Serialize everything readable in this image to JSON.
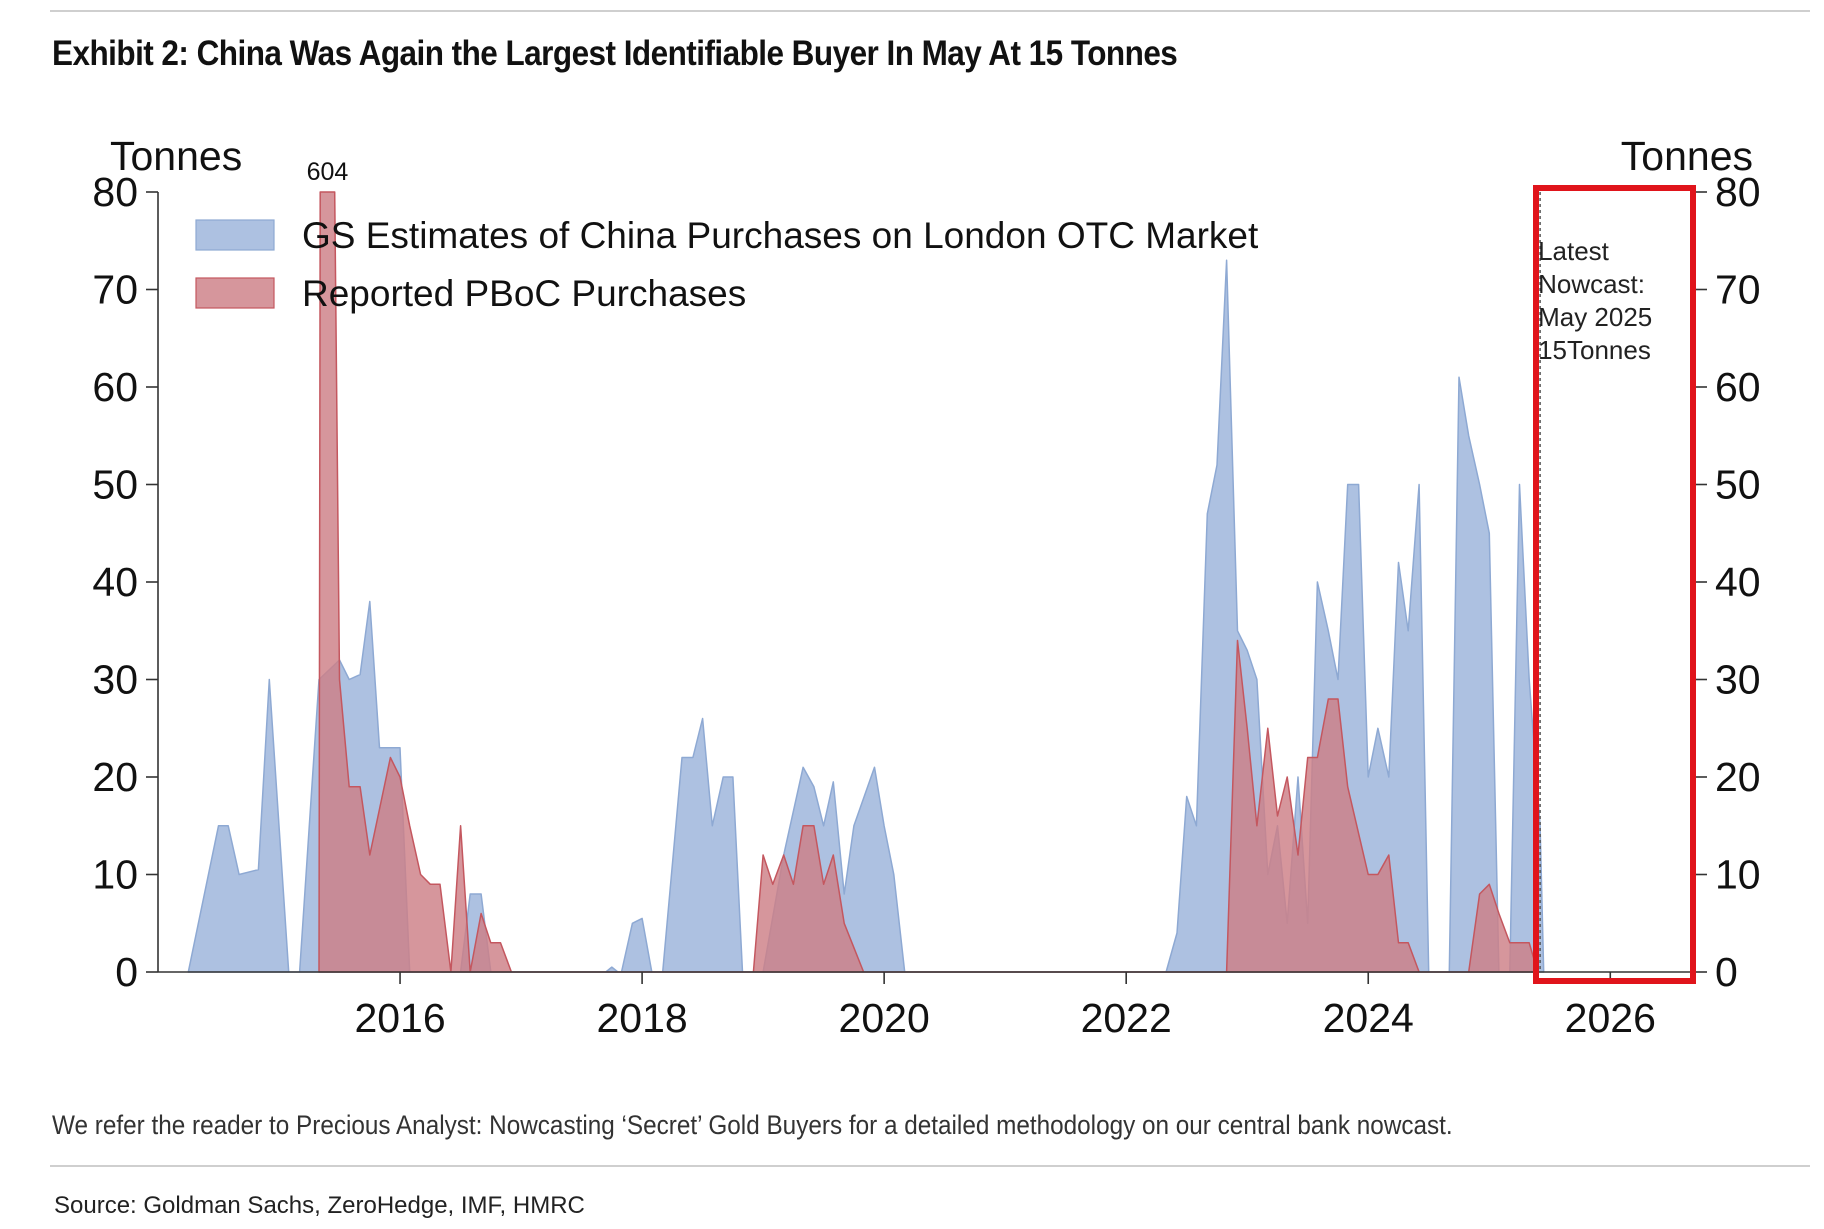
{
  "title": "Exhibit 2: China Was Again the Largest Identifiable Buyer In May At 15 Tonnes",
  "note": "We refer the reader to Precious Analyst: Nowcasting ‘Secret’ Gold Buyers for a detailed methodology on our central bank nowcast.",
  "source": "Source: Goldman Sachs, ZeroHedge, IMF, HMRC",
  "colors": {
    "gs_fill": "#a9bedf",
    "gs_line": "#8ea9d3",
    "pboc_fill": "#cd7f86",
    "pboc_line": "#c4575f",
    "highlight_box": "#e0141b"
  },
  "chart_data": {
    "type": "area",
    "left_axis_title": "Tonnes",
    "right_axis_title": "Tonnes",
    "ylim": [
      0,
      80
    ],
    "yticks": [
      "0",
      "10",
      "20",
      "30",
      "40",
      "50",
      "60",
      "70",
      "80"
    ],
    "xlim": [
      2014.0,
      2026.7
    ],
    "xticks": [
      {
        "value": 2016,
        "label": "2016"
      },
      {
        "value": 2018,
        "label": "2018"
      },
      {
        "value": 2020,
        "label": "2020"
      },
      {
        "value": 2022,
        "label": "2022"
      },
      {
        "value": 2024,
        "label": "2024"
      },
      {
        "value": 2026,
        "label": "2026"
      }
    ],
    "grid": false,
    "legend_position": "top-left",
    "series": [
      {
        "name": "GS Estimates of China Purchases on London OTC Market",
        "points": [
          [
            2014.25,
            0
          ],
          [
            2014.5,
            15
          ],
          [
            2014.58,
            15
          ],
          [
            2014.67,
            10
          ],
          [
            2014.83,
            10.5
          ],
          [
            2014.92,
            30
          ],
          [
            2015.08,
            0
          ],
          [
            2015.17,
            0
          ],
          [
            2015.33,
            30
          ],
          [
            2015.5,
            32
          ],
          [
            2015.58,
            30
          ],
          [
            2015.67,
            30.5
          ],
          [
            2015.75,
            38
          ],
          [
            2015.83,
            23
          ],
          [
            2016.0,
            23
          ],
          [
            2016.08,
            0
          ],
          [
            2016.33,
            0
          ],
          [
            2016.5,
            0
          ],
          [
            2016.58,
            8
          ],
          [
            2016.67,
            8
          ],
          [
            2016.75,
            0
          ],
          [
            2017.7,
            0
          ],
          [
            2017.75,
            0.5
          ],
          [
            2017.8,
            0
          ],
          [
            2017.83,
            0
          ],
          [
            2017.92,
            5
          ],
          [
            2018.0,
            5.5
          ],
          [
            2018.08,
            0
          ],
          [
            2018.17,
            0
          ],
          [
            2018.33,
            22
          ],
          [
            2018.42,
            22
          ],
          [
            2018.5,
            26
          ],
          [
            2018.58,
            15
          ],
          [
            2018.67,
            20
          ],
          [
            2018.75,
            20
          ],
          [
            2018.83,
            0
          ],
          [
            2019.0,
            0
          ],
          [
            2019.17,
            12
          ],
          [
            2019.33,
            21
          ],
          [
            2019.42,
            19
          ],
          [
            2019.5,
            15
          ],
          [
            2019.58,
            19.5
          ],
          [
            2019.67,
            8
          ],
          [
            2019.75,
            15
          ],
          [
            2019.92,
            21
          ],
          [
            2020.0,
            15
          ],
          [
            2020.08,
            10
          ],
          [
            2020.17,
            0
          ],
          [
            2022.33,
            0
          ],
          [
            2022.42,
            4
          ],
          [
            2022.5,
            18
          ],
          [
            2022.58,
            15
          ],
          [
            2022.67,
            47
          ],
          [
            2022.75,
            52
          ],
          [
            2022.83,
            73
          ],
          [
            2022.92,
            35
          ],
          [
            2023.0,
            33
          ],
          [
            2023.08,
            30
          ],
          [
            2023.17,
            10
          ],
          [
            2023.25,
            15
          ],
          [
            2023.33,
            5
          ],
          [
            2023.42,
            20
          ],
          [
            2023.5,
            5
          ],
          [
            2023.58,
            40
          ],
          [
            2023.67,
            35
          ],
          [
            2023.75,
            30
          ],
          [
            2023.83,
            50
          ],
          [
            2023.92,
            50
          ],
          [
            2024.0,
            20
          ],
          [
            2024.08,
            25
          ],
          [
            2024.17,
            20
          ],
          [
            2024.25,
            42
          ],
          [
            2024.33,
            35
          ],
          [
            2024.42,
            50
          ],
          [
            2024.5,
            0
          ],
          [
            2024.67,
            0
          ],
          [
            2024.75,
            61
          ],
          [
            2024.83,
            55
          ],
          [
            2024.92,
            50
          ],
          [
            2025.0,
            45
          ],
          [
            2025.08,
            0
          ],
          [
            2025.17,
            0
          ],
          [
            2025.25,
            50
          ],
          [
            2025.33,
            30
          ],
          [
            2025.42,
            15
          ],
          [
            2025.45,
            0
          ]
        ]
      },
      {
        "name": "Reported PBoC Purchases",
        "annotation": "604",
        "points": [
          [
            2015.33,
            0
          ],
          [
            2015.34,
            80
          ],
          [
            2015.46,
            80
          ],
          [
            2015.5,
            30
          ],
          [
            2015.58,
            19
          ],
          [
            2015.67,
            19
          ],
          [
            2015.75,
            12
          ],
          [
            2015.92,
            22
          ],
          [
            2016.0,
            20
          ],
          [
            2016.08,
            15
          ],
          [
            2016.17,
            10
          ],
          [
            2016.25,
            9
          ],
          [
            2016.33,
            9
          ],
          [
            2016.42,
            0
          ],
          [
            2016.5,
            15
          ],
          [
            2016.58,
            0
          ],
          [
            2016.67,
            6
          ],
          [
            2016.75,
            3
          ],
          [
            2016.83,
            3
          ],
          [
            2016.92,
            0
          ],
          [
            2018.92,
            0
          ],
          [
            2019.0,
            12
          ],
          [
            2019.08,
            9
          ],
          [
            2019.17,
            12
          ],
          [
            2019.25,
            9
          ],
          [
            2019.33,
            15
          ],
          [
            2019.42,
            15
          ],
          [
            2019.5,
            9
          ],
          [
            2019.58,
            12
          ],
          [
            2019.67,
            5
          ],
          [
            2019.83,
            0
          ],
          [
            2022.83,
            0
          ],
          [
            2022.92,
            34
          ],
          [
            2023.0,
            25
          ],
          [
            2023.08,
            15
          ],
          [
            2023.17,
            25
          ],
          [
            2023.25,
            16
          ],
          [
            2023.33,
            20
          ],
          [
            2023.42,
            12
          ],
          [
            2023.5,
            22
          ],
          [
            2023.58,
            22
          ],
          [
            2023.67,
            28
          ],
          [
            2023.75,
            28
          ],
          [
            2023.83,
            19
          ],
          [
            2024.0,
            10
          ],
          [
            2024.08,
            10
          ],
          [
            2024.17,
            12
          ],
          [
            2024.25,
            3
          ],
          [
            2024.33,
            3
          ],
          [
            2024.42,
            0
          ],
          [
            2024.83,
            0
          ],
          [
            2024.92,
            8
          ],
          [
            2025.0,
            9
          ],
          [
            2025.08,
            6
          ],
          [
            2025.17,
            3
          ],
          [
            2025.25,
            3
          ],
          [
            2025.33,
            3
          ],
          [
            2025.4,
            0
          ]
        ]
      }
    ],
    "annotations": {
      "nowcast_lines": [
        "Latest",
        "Nowcast:",
        "May 2025",
        "15Tonnes"
      ],
      "nowcast_x": 2025.42
    }
  }
}
